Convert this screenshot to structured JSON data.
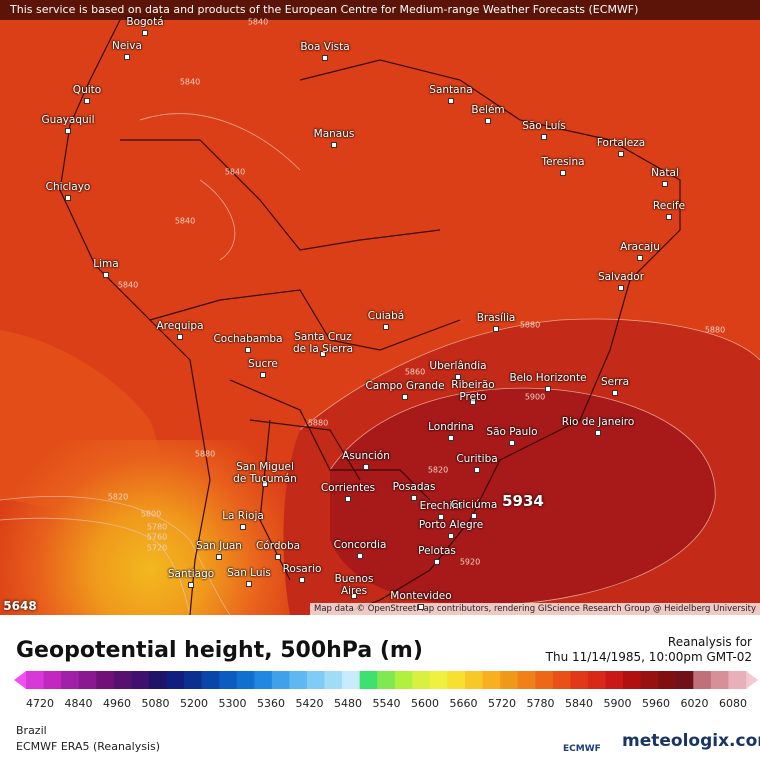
{
  "header": {
    "notice": "This service is based on data and products of the European Centre for Medium-range Weather Forecasts (ECMWF)"
  },
  "map": {
    "cities": [
      "Bogotá",
      "Neiva",
      "Boa Vista",
      "Quito",
      "Guayaquil",
      "Santana",
      "Belém",
      "São Luís",
      "Manaus",
      "Fortaleza",
      "Teresina",
      "Natal",
      "Chiclayo",
      "Recife",
      "Aracaju",
      "Lima",
      "Salvador",
      "Arequipa",
      "Cuiabá",
      "Brasília",
      "Cochabamba",
      "Santa Cruz\nde la Sierra",
      "Sucre",
      "Uberlândia",
      "Belo Horizonte",
      "Campo Grande",
      "Ribeirão\nPreto",
      "Serra",
      "Londrina",
      "São Paulo",
      "Rio de Janeiro",
      "Asunción",
      "San Miguel\nde Tucumán",
      "Curitiba",
      "Corrientes",
      "Posadas",
      "Erechim",
      "Criciúma",
      "La Rioja",
      "Porto Alegre",
      "San Juan",
      "Córdoba",
      "Concordia",
      "Pelotas",
      "Santiago",
      "San Luis",
      "Rosario",
      "Buenos\nAires",
      "Montevideo"
    ],
    "contour_labels": [
      "5840",
      "5840",
      "5840",
      "5840",
      "5840",
      "5860",
      "5880",
      "5880",
      "5900",
      "5880",
      "5820",
      "5820",
      "5800",
      "5780",
      "5760",
      "5720",
      "5920",
      "5880"
    ],
    "max_label": "5934",
    "min_label": "5648",
    "attribution": "Map data © OpenStreetMap contributors, rendering GIScience Research Group @ Heidelberg University"
  },
  "legend": {
    "title": "Geopotential height, 500hPa (m)",
    "run_label": "Reanalysis for",
    "date": "Thu 11/14/1985, 10:00pm GMT-02",
    "ticks": [
      "4720",
      "4840",
      "4960",
      "5080",
      "5200",
      "5300",
      "5360",
      "5420",
      "5480",
      "5540",
      "5600",
      "5660",
      "5720",
      "5780",
      "5840",
      "5900",
      "5960",
      "6020",
      "6080"
    ]
  },
  "footer": {
    "region": "Brazil",
    "model": "ECMWF ERA5 (Reanalysis)",
    "ecmwf_logo": "ECMWF",
    "brand": "meteologix.com"
  }
}
